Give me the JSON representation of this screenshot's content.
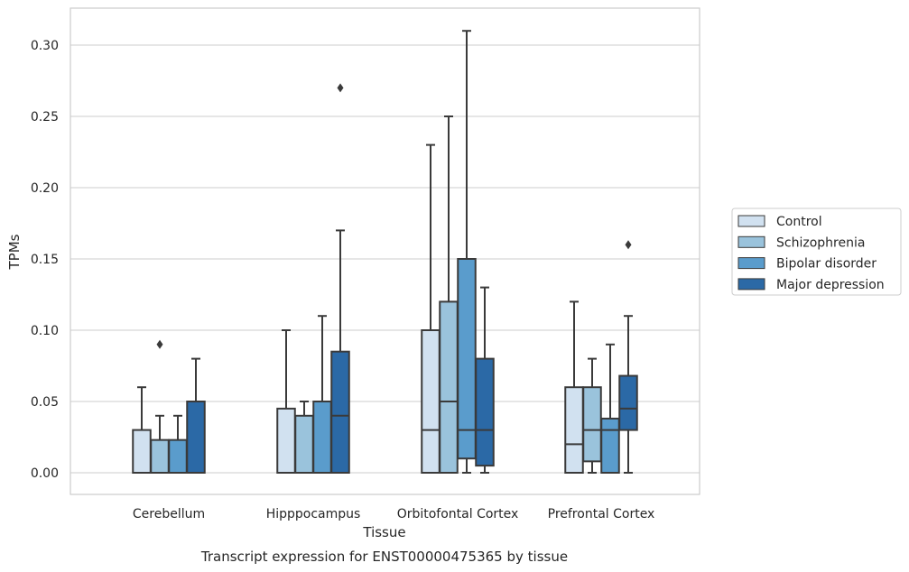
{
  "chart_data": {
    "type": "box",
    "title": "",
    "caption": "Transcript expression for ENST00000475365 by tissue",
    "xlabel": "Tissue",
    "ylabel": "TPMs",
    "ylim": [
      -0.015,
      0.325
    ],
    "yticks": [
      "0.00",
      "0.05",
      "0.10",
      "0.15",
      "0.20",
      "0.25",
      "0.30"
    ],
    "ytick_values": [
      0,
      0.05,
      0.1,
      0.15,
      0.2,
      0.25,
      0.3
    ],
    "grid": "horizontal",
    "legend_position": "right",
    "categories": [
      "Cerebellum",
      "Hipppocampus",
      "Orbitofontal Cortex",
      "Prefrontal Cortex"
    ],
    "series": [
      {
        "name": "Control",
        "color": "#d1e1f0",
        "boxes": [
          {
            "min": 0,
            "q1": 0,
            "median": 0,
            "q3": 0.03,
            "max": 0.06,
            "outliers": []
          },
          {
            "min": 0,
            "q1": 0,
            "median": 0,
            "q3": 0.045,
            "max": 0.1,
            "outliers": []
          },
          {
            "min": 0,
            "q1": 0,
            "median": 0.03,
            "q3": 0.1,
            "max": 0.23,
            "outliers": []
          },
          {
            "min": 0,
            "q1": 0,
            "median": 0.02,
            "q3": 0.06,
            "max": 0.12,
            "outliers": []
          }
        ]
      },
      {
        "name": "Schizophrenia",
        "color": "#9ac3dc",
        "boxes": [
          {
            "min": 0,
            "q1": 0,
            "median": 0,
            "q3": 0.023,
            "max": 0.04,
            "outliers": [
              0.09
            ]
          },
          {
            "min": 0,
            "q1": 0,
            "median": 0,
            "q3": 0.04,
            "max": 0.05,
            "outliers": []
          },
          {
            "min": 0,
            "q1": 0,
            "median": 0.05,
            "q3": 0.12,
            "max": 0.25,
            "outliers": []
          },
          {
            "min": 0,
            "q1": 0.008,
            "median": 0.03,
            "q3": 0.06,
            "max": 0.08,
            "outliers": []
          }
        ]
      },
      {
        "name": "Bipolar disorder",
        "color": "#5a9ccc",
        "boxes": [
          {
            "min": 0,
            "q1": 0,
            "median": 0,
            "q3": 0.023,
            "max": 0.04,
            "outliers": []
          },
          {
            "min": 0,
            "q1": 0,
            "median": 0,
            "q3": 0.05,
            "max": 0.11,
            "outliers": []
          },
          {
            "min": 0,
            "q1": 0.01,
            "median": 0.03,
            "q3": 0.15,
            "max": 0.31,
            "outliers": []
          },
          {
            "min": 0,
            "q1": 0,
            "median": 0.03,
            "q3": 0.038,
            "max": 0.09,
            "outliers": []
          }
        ]
      },
      {
        "name": "Major depression",
        "color": "#2b69a6",
        "boxes": [
          {
            "min": 0,
            "q1": 0,
            "median": 0,
            "q3": 0.05,
            "max": 0.08,
            "outliers": []
          },
          {
            "min": 0,
            "q1": 0,
            "median": 0.04,
            "q3": 0.085,
            "max": 0.17,
            "outliers": [
              0.27
            ]
          },
          {
            "min": 0,
            "q1": 0.005,
            "median": 0.03,
            "q3": 0.08,
            "max": 0.13,
            "outliers": []
          },
          {
            "min": 0,
            "q1": 0.03,
            "median": 0.045,
            "q3": 0.068,
            "max": 0.11,
            "outliers": [
              0.16
            ]
          }
        ]
      }
    ]
  }
}
